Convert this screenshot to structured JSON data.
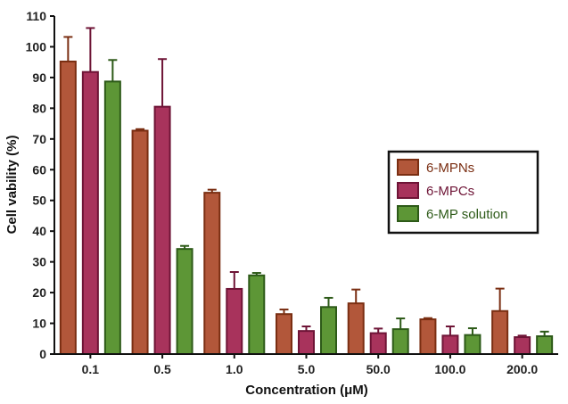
{
  "chart_data": {
    "type": "bar",
    "title": "",
    "xlabel": "Concentration (μM)",
    "ylabel": "Cell vability (%)",
    "ylim": [
      0,
      110
    ],
    "yticks": [
      "0",
      "10",
      "20",
      "30",
      "40",
      "50",
      "60",
      "70",
      "80",
      "90",
      "100",
      "110"
    ],
    "categories": [
      "0.1",
      "0.5",
      "1.0",
      "5.0",
      "50.0",
      "100.0",
      "200.0"
    ],
    "series": [
      {
        "name": "6-MPNs",
        "fill": "#b2573a",
        "stroke": "#7a2e12",
        "values": [
          95.2,
          72.7,
          52.5,
          13.0,
          16.5,
          11.3,
          14.0
        ],
        "errors": [
          8.0,
          0.5,
          1.0,
          1.5,
          4.5,
          0.4,
          7.3
        ]
      },
      {
        "name": "6-MPCs",
        "fill": "#a8335c",
        "stroke": "#6e1436",
        "values": [
          91.8,
          80.5,
          21.2,
          7.5,
          6.8,
          6.0,
          5.5
        ],
        "errors": [
          14.3,
          15.5,
          5.5,
          1.5,
          1.5,
          3.0,
          0.5
        ]
      },
      {
        "name": "6-MP solution",
        "fill": "#5d9636",
        "stroke": "#2d5a18",
        "values": [
          88.7,
          34.2,
          25.6,
          15.3,
          8.1,
          6.2,
          5.8
        ],
        "errors": [
          7.0,
          1.0,
          0.8,
          3.0,
          3.5,
          2.2,
          1.5
        ]
      }
    ],
    "legend": {
      "position": "right",
      "border": true
    }
  }
}
